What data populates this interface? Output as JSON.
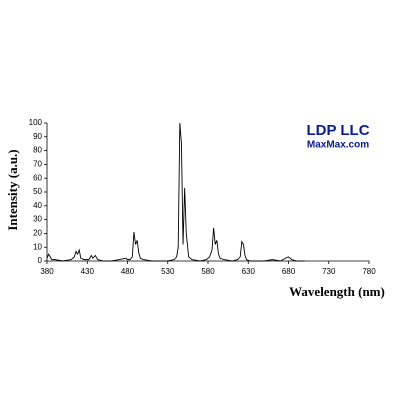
{
  "chart_data": {
    "type": "line",
    "y_label": "Intensity (a.u.)",
    "x_label": "Wavelength (nm)",
    "annotations": [
      "LDP LLC",
      "MaxMax.com"
    ],
    "annotation_color": "#0a1a9a",
    "series": [
      {
        "color": "#000000",
        "x": [
          380,
          382,
          384,
          386,
          390,
          400,
          410,
          414,
          416,
          418,
          420,
          422,
          426,
          432,
          435,
          437,
          440,
          443,
          450,
          460,
          470,
          478,
          480,
          483,
          486,
          488,
          490,
          492,
          494,
          496,
          500,
          510,
          520,
          530,
          538,
          541,
          543,
          545,
          547,
          549,
          551,
          553,
          556,
          560,
          570,
          578,
          582,
          585,
          587,
          589,
          591,
          593,
          595,
          600,
          610,
          617,
          620,
          622,
          624,
          626,
          628,
          632,
          640,
          650,
          660,
          670,
          676,
          680,
          684,
          690,
          700
        ],
        "values": [
          2,
          5,
          3,
          1,
          1,
          0,
          1,
          3,
          7,
          5,
          8,
          2,
          1,
          1,
          4,
          2,
          4,
          1,
          0,
          0,
          1,
          2,
          1,
          1,
          3,
          21,
          12,
          15,
          6,
          2,
          1,
          0,
          0,
          0,
          1,
          3,
          10,
          100,
          85,
          12,
          53,
          20,
          3,
          1,
          0,
          1,
          3,
          8,
          24,
          12,
          15,
          5,
          2,
          1,
          0,
          1,
          3,
          14,
          12,
          4,
          1,
          0,
          0,
          0,
          1,
          0,
          2,
          3,
          1,
          0,
          0
        ]
      }
    ],
    "xlim": [
      380,
      780
    ],
    "xticks": [
      380,
      430,
      480,
      530,
      580,
      630,
      680,
      730,
      780
    ],
    "ylim": [
      0,
      100
    ],
    "yticks": [
      0,
      10,
      20,
      30,
      40,
      50,
      60,
      70,
      80,
      90,
      100
    ],
    "grid": false
  }
}
